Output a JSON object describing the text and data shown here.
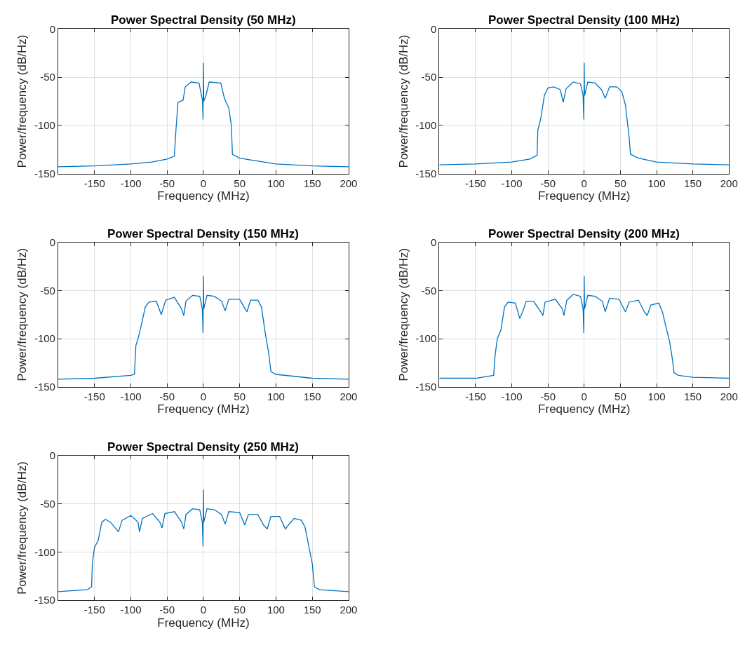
{
  "chart_data": [
    {
      "type": "line",
      "title": "Power Spectral Density (50 MHz)",
      "xlabel": "Frequency (MHz)",
      "ylabel": "Power/frequency (dB/Hz)",
      "xlim": [
        -200,
        200
      ],
      "xticks": [
        -150,
        -100,
        -50,
        0,
        50,
        100,
        150,
        200
      ],
      "ylim": [
        -150,
        0
      ],
      "yticks": [
        -150,
        -100,
        -50,
        0
      ],
      "grid": true,
      "series": [
        {
          "color": "#0072bd",
          "x": [
            -200,
            -150,
            -100,
            -71,
            -50,
            -40,
            -38,
            -35,
            -28,
            -25,
            -17,
            -6,
            -1.3,
            -0.5,
            0,
            0.5,
            3.5,
            8,
            24,
            29,
            35,
            38.5,
            40,
            50,
            100,
            150,
            200
          ],
          "values": [
            -143,
            -142,
            -140,
            -138,
            -135,
            -132,
            -107,
            -76,
            -74,
            -60,
            -55,
            -56,
            -74,
            -94,
            -35,
            -75,
            -69,
            -55,
            -56,
            -72,
            -82,
            -100,
            -130,
            -134,
            -140,
            -142,
            -143
          ]
        }
      ]
    },
    {
      "type": "line",
      "title": "Power Spectral Density (100 MHz)",
      "xlabel": "Frequency (MHz)",
      "ylabel": "Power/frequency (dB/Hz)",
      "xlim": [
        -200,
        200
      ],
      "xticks": [
        -150,
        -100,
        -50,
        0,
        50,
        100,
        150,
        200
      ],
      "ylim": [
        -150,
        0
      ],
      "yticks": [
        -150,
        -100,
        -50,
        0
      ],
      "grid": true,
      "series": [
        {
          "color": "#0072bd",
          "x": [
            -200,
            -150,
            -100,
            -75,
            -65,
            -64,
            -60,
            -55,
            -50,
            -42,
            -33,
            -29,
            -25,
            -15,
            -5,
            -1.5,
            -0.5,
            0,
            0.5,
            5,
            15,
            24,
            29,
            35,
            45,
            52,
            57,
            62,
            64,
            75,
            100,
            150,
            200
          ],
          "values": [
            -141,
            -140,
            -138,
            -135,
            -131,
            -105,
            -93,
            -69,
            -61,
            -60,
            -63,
            -76,
            -62,
            -55,
            -57,
            -69,
            -94,
            -35,
            -69,
            -55,
            -56,
            -63,
            -72,
            -60,
            -60,
            -65,
            -79,
            -112,
            -130,
            -134,
            -138,
            -140,
            -141
          ]
        }
      ]
    },
    {
      "type": "line",
      "title": "Power Spectral Density (150 MHz)",
      "xlabel": "Frequency (MHz)",
      "ylabel": "Power/frequency (dB/Hz)",
      "xlim": [
        -200,
        200
      ],
      "xticks": [
        -150,
        -100,
        -50,
        0,
        50,
        100,
        150,
        200
      ],
      "ylim": [
        -150,
        0
      ],
      "yticks": [
        -150,
        -100,
        -50,
        0
      ],
      "grid": true,
      "series": [
        {
          "color": "#0072bd",
          "x": [
            -200,
            -150,
            -100,
            -95,
            -93,
            -90,
            -85,
            -80,
            -75,
            -65,
            -58,
            -52,
            -40,
            -30,
            -27,
            -24,
            -15,
            -5,
            -1.5,
            -0.5,
            0,
            0.5,
            5,
            15,
            25,
            30,
            35,
            50,
            56,
            60,
            65,
            75,
            80,
            85,
            90,
            93,
            95,
            100,
            150,
            200
          ],
          "values": [
            -142,
            -141,
            -138,
            -137,
            -107,
            -100,
            -84,
            -67,
            -62,
            -61,
            -75,
            -60,
            -57,
            -69,
            -76,
            -61,
            -55,
            -56,
            -69,
            -94,
            -35,
            -69,
            -55,
            -56,
            -61,
            -71,
            -59,
            -59,
            -67,
            -72,
            -60,
            -60,
            -67,
            -93,
            -115,
            -134,
            -135,
            -137,
            -141,
            -142
          ]
        }
      ]
    },
    {
      "type": "line",
      "title": "Power Spectral Density (200 MHz)",
      "xlabel": "Frequency (MHz)",
      "ylabel": "Power/frequency (dB/Hz)",
      "xlim": [
        -200,
        200
      ],
      "xticks": [
        -150,
        -100,
        -50,
        0,
        50,
        100,
        150,
        200
      ],
      "ylim": [
        -150,
        0
      ],
      "yticks": [
        -150,
        -100,
        -50,
        0
      ],
      "grid": true,
      "series": [
        {
          "color": "#0072bd",
          "x": [
            -200,
            -150,
            -125,
            -123,
            -120,
            -115,
            -110,
            -105,
            -95,
            -89,
            -85,
            -80,
            -70,
            -60,
            -57,
            -54,
            -40,
            -30,
            -28,
            -24,
            -15,
            -5,
            -1.5,
            -0.5,
            0,
            0.5,
            5,
            15,
            25,
            29,
            35,
            48,
            57,
            62,
            75,
            83,
            87,
            92,
            103,
            108,
            113,
            118,
            122,
            124,
            130,
            150,
            200
          ],
          "values": [
            -141,
            -141,
            -138,
            -117,
            -100,
            -91,
            -67,
            -62,
            -63,
            -79,
            -72,
            -61,
            -61,
            -72,
            -76,
            -62,
            -59,
            -69,
            -76,
            -60,
            -54,
            -56,
            -69,
            -94,
            -35,
            -69,
            -55,
            -56,
            -61,
            -72,
            -58,
            -59,
            -72,
            -62,
            -60,
            -72,
            -76,
            -65,
            -63,
            -72,
            -88,
            -103,
            -122,
            -135,
            -138,
            -140,
            -141
          ]
        }
      ]
    },
    {
      "type": "line",
      "title": "Power Spectral Density (250 MHz)",
      "xlabel": "Frequency (MHz)",
      "ylabel": "Power/frequency (dB/Hz)",
      "xlim": [
        -200,
        200
      ],
      "xticks": [
        -150,
        -100,
        -50,
        0,
        50,
        100,
        150,
        200
      ],
      "ylim": [
        -150,
        0
      ],
      "yticks": [
        -150,
        -100,
        -50,
        0
      ],
      "grid": true,
      "series": [
        {
          "color": "#0072bd",
          "x": [
            -200,
            -160,
            -154,
            -153,
            -150,
            -145,
            -140,
            -135,
            -128,
            -117,
            -112,
            -100,
            -90,
            -88,
            -84,
            -70,
            -60,
            -57,
            -53,
            -40,
            -30,
            -27,
            -24,
            -15,
            -5,
            -1.5,
            -0.5,
            0,
            0.5,
            5,
            15,
            25,
            30,
            35,
            50,
            57,
            62,
            75,
            83,
            88,
            93,
            105,
            113,
            117,
            125,
            135,
            140,
            145,
            150,
            153,
            160,
            200
          ],
          "values": [
            -141,
            -139,
            -136,
            -112,
            -95,
            -88,
            -69,
            -66,
            -69,
            -79,
            -67,
            -62,
            -69,
            -79,
            -65,
            -60,
            -69,
            -75,
            -60,
            -58,
            -69,
            -76,
            -61,
            -55,
            -56,
            -69,
            -94,
            -35,
            -69,
            -55,
            -56,
            -61,
            -71,
            -58,
            -59,
            -72,
            -61,
            -61,
            -72,
            -76,
            -63,
            -63,
            -76,
            -72,
            -65,
            -67,
            -74,
            -93,
            -112,
            -136,
            -139,
            -141
          ]
        }
      ]
    }
  ]
}
